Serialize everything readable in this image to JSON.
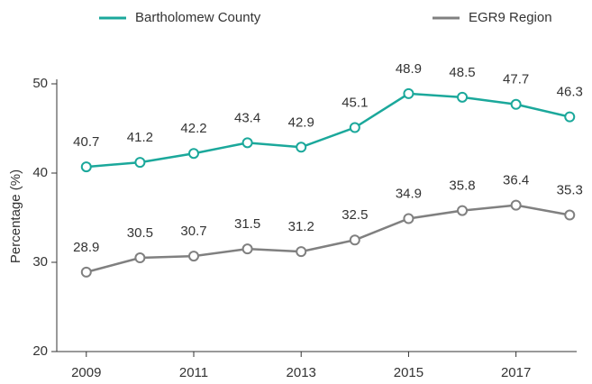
{
  "chart_data": {
    "type": "line",
    "x": [
      2009,
      2010,
      2011,
      2012,
      2013,
      2014,
      2015,
      2016,
      2017,
      2018
    ],
    "series": [
      {
        "name": "Bartholomew County",
        "color": "#1ba89b",
        "values": [
          40.7,
          41.2,
          42.2,
          43.4,
          42.9,
          45.1,
          48.9,
          48.5,
          47.7,
          46.3
        ]
      },
      {
        "name": "EGR9 Region",
        "color": "#808080",
        "values": [
          28.9,
          30.5,
          30.7,
          31.5,
          31.2,
          32.5,
          34.9,
          35.8,
          36.4,
          35.3
        ]
      }
    ],
    "ylabel": "Percentage (%)",
    "xlim": [
      2008.45,
      2018.13
    ],
    "xticks": [
      2009,
      2011,
      2013,
      2015,
      2017
    ],
    "ylim": [
      20,
      50
    ],
    "yticks": [
      20,
      30,
      40,
      50
    ],
    "legend": "top"
  }
}
